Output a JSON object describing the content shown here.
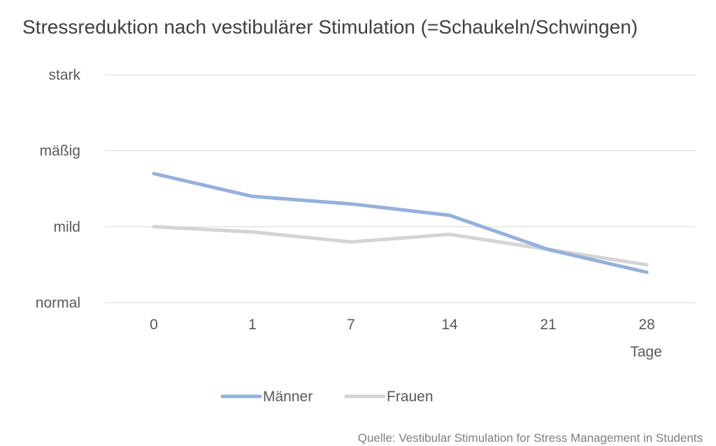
{
  "chart_data": {
    "type": "line",
    "title": "Stressreduktion nach vestibulärer Stimulation (=Schaukeln/Schwingen)",
    "xlabel": "Tage",
    "ylabel": "",
    "categories": [
      "0",
      "1",
      "7",
      "14",
      "21",
      "28"
    ],
    "y_tick_labels": [
      "normal",
      "mild",
      "mäßig",
      "stark"
    ],
    "ylim": [
      0,
      3
    ],
    "grid": true,
    "legend_position": "bottom",
    "series": [
      {
        "name": "Männer",
        "color": "#95b0dc",
        "values": [
          1.7,
          1.4,
          1.3,
          1.15,
          0.7,
          0.4
        ]
      },
      {
        "name": "Frauen",
        "color": "#d4d4d4",
        "values": [
          1.0,
          0.93,
          0.8,
          0.9,
          0.7,
          0.5
        ]
      }
    ],
    "source": "Quelle:  Vestibular Stimulation for Stress Management in Students"
  }
}
